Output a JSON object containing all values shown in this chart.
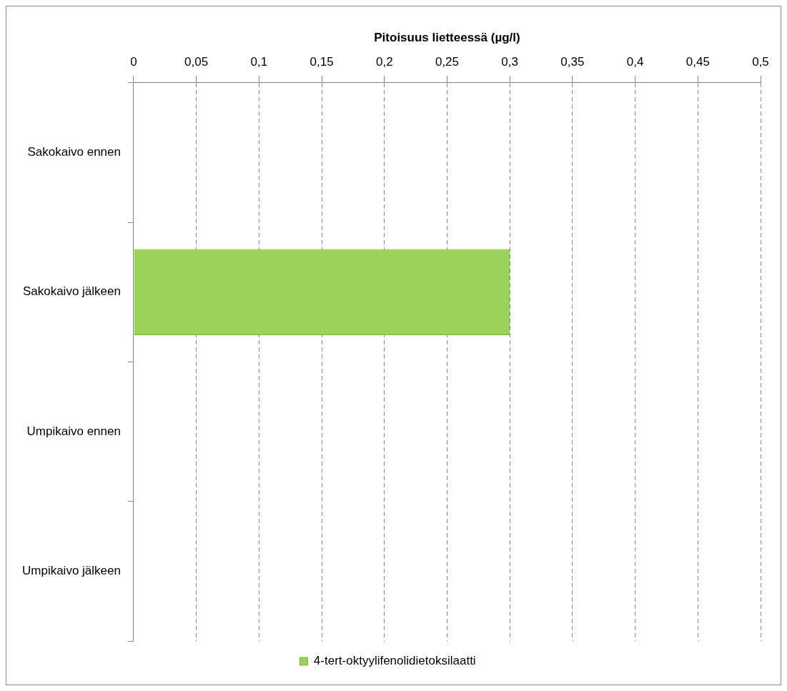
{
  "chart_data": {
    "type": "bar",
    "orientation": "horizontal",
    "xlabel": "Pitoisuus lietteessä (µg/l)",
    "categories": [
      "Sakokaivo ennen",
      "Sakokaivo jälkeen",
      "Umpikaivo ennen",
      "Umpikaivo jälkeen"
    ],
    "series": [
      {
        "name": "4-tert-oktyylifenolidietoksilaatti",
        "color": "#9bd35a",
        "values": [
          null,
          0.3,
          null,
          null
        ]
      }
    ],
    "xlim": [
      0,
      0.5
    ],
    "xticks": [
      {
        "value": 0,
        "label": "0"
      },
      {
        "value": 0.05,
        "label": "0,05"
      },
      {
        "value": 0.1,
        "label": "0,1"
      },
      {
        "value": 0.15,
        "label": "0,15"
      },
      {
        "value": 0.2,
        "label": "0,2"
      },
      {
        "value": 0.25,
        "label": "0,25"
      },
      {
        "value": 0.3,
        "label": "0,3"
      },
      {
        "value": 0.35,
        "label": "0,35"
      },
      {
        "value": 0.4,
        "label": "0,4"
      },
      {
        "value": 0.45,
        "label": "0,45"
      },
      {
        "value": 0.5,
        "label": "0,5"
      }
    ],
    "grid": "x",
    "line_style": "dashed",
    "legend": "bottom"
  }
}
